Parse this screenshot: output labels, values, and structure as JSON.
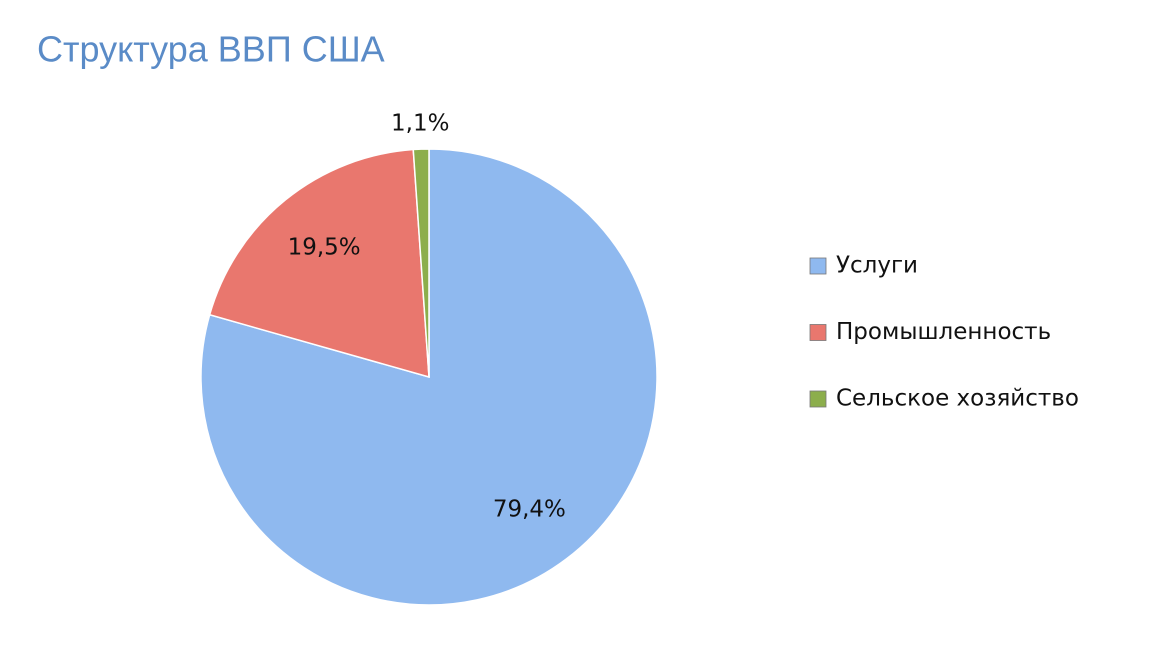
{
  "chart_data": {
    "type": "pie",
    "title": "Структура ВВП США",
    "categories": [
      "Услуги",
      "Промышленность",
      "Сельское хозяйство"
    ],
    "values": [
      79.4,
      19.5,
      1.1
    ],
    "value_labels": [
      "79,4%",
      "19,5%",
      "1,1%"
    ],
    "colors": [
      "#8fb9ef",
      "#e9776e",
      "#8cae4c"
    ],
    "legend": "right"
  }
}
